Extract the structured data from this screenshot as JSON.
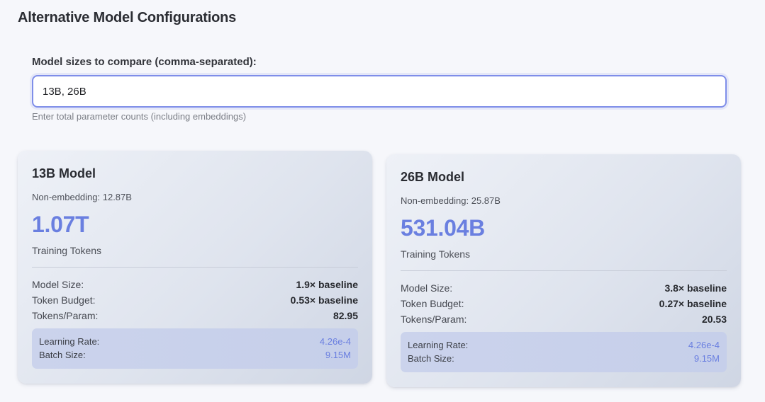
{
  "section": {
    "title": "Alternative Model Configurations"
  },
  "input": {
    "label": "Model sizes to compare (comma-separated):",
    "value": "13B, 26B",
    "hint": "Enter total parameter counts (including embeddings)"
  },
  "cards": [
    {
      "title": "13B Model",
      "non_embedding": "Non-embedding: 12.87B",
      "tokens": "1.07T",
      "tokens_label": "Training Tokens",
      "stats": [
        {
          "label": "Model Size:",
          "value": "1.9× baseline"
        },
        {
          "label": "Token Budget:",
          "value": "0.53× baseline"
        },
        {
          "label": "Tokens/Param:",
          "value": "82.95"
        }
      ],
      "hyperparams": [
        {
          "label": "Learning Rate:",
          "value": "4.26e-4"
        },
        {
          "label": "Batch Size:",
          "value": "9.15M"
        }
      ]
    },
    {
      "title": "26B Model",
      "non_embedding": "Non-embedding: 25.87B",
      "tokens": "531.04B",
      "tokens_label": "Training Tokens",
      "stats": [
        {
          "label": "Model Size:",
          "value": "3.8× baseline"
        },
        {
          "label": "Token Budget:",
          "value": "0.27× baseline"
        },
        {
          "label": "Tokens/Param:",
          "value": "20.53"
        }
      ],
      "hyperparams": [
        {
          "label": "Learning Rate:",
          "value": "4.26e-4"
        },
        {
          "label": "Batch Size:",
          "value": "9.15M"
        }
      ]
    }
  ],
  "colors": {
    "accent": "#6a7fe0",
    "input_border": "#7f8ee9",
    "background": "#f6f7fb"
  }
}
